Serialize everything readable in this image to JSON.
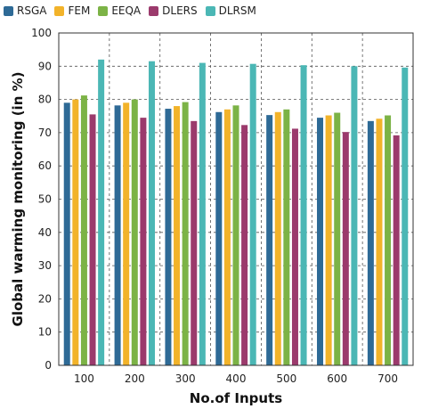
{
  "chart_data": {
    "type": "bar",
    "title": "",
    "xlabel": "No.of Inputs",
    "ylabel": "Global warming monitoring (in %)",
    "categories": [
      "100",
      "200",
      "300",
      "400",
      "500",
      "600",
      "700"
    ],
    "ylim": [
      0,
      100
    ],
    "yticks": [
      "0",
      "10",
      "20",
      "30",
      "40",
      "50",
      "60",
      "70",
      "80",
      "90",
      "100"
    ],
    "grid": "dashed",
    "legend_position": "top-left",
    "series": [
      {
        "name": "RSGA",
        "color": "#2e6a96",
        "values": [
          79,
          78.2,
          77.2,
          76.2,
          75.3,
          74.5,
          73.5
        ]
      },
      {
        "name": "FEM",
        "color": "#f2b32a",
        "values": [
          80,
          79,
          78,
          77,
          76.2,
          75.2,
          74.2
        ]
      },
      {
        "name": "EEQA",
        "color": "#7cb346",
        "values": [
          81.2,
          80,
          79.2,
          78.2,
          77,
          76,
          75.2
        ]
      },
      {
        "name": "DLERS",
        "color": "#9b3a6c",
        "values": [
          75.5,
          74.5,
          73.5,
          72.3,
          71.2,
          70.2,
          69.2
        ]
      },
      {
        "name": "DLRSM",
        "color": "#4bb7b5",
        "values": [
          92,
          91.5,
          91,
          90.7,
          90.3,
          90,
          89.6
        ]
      }
    ]
  }
}
